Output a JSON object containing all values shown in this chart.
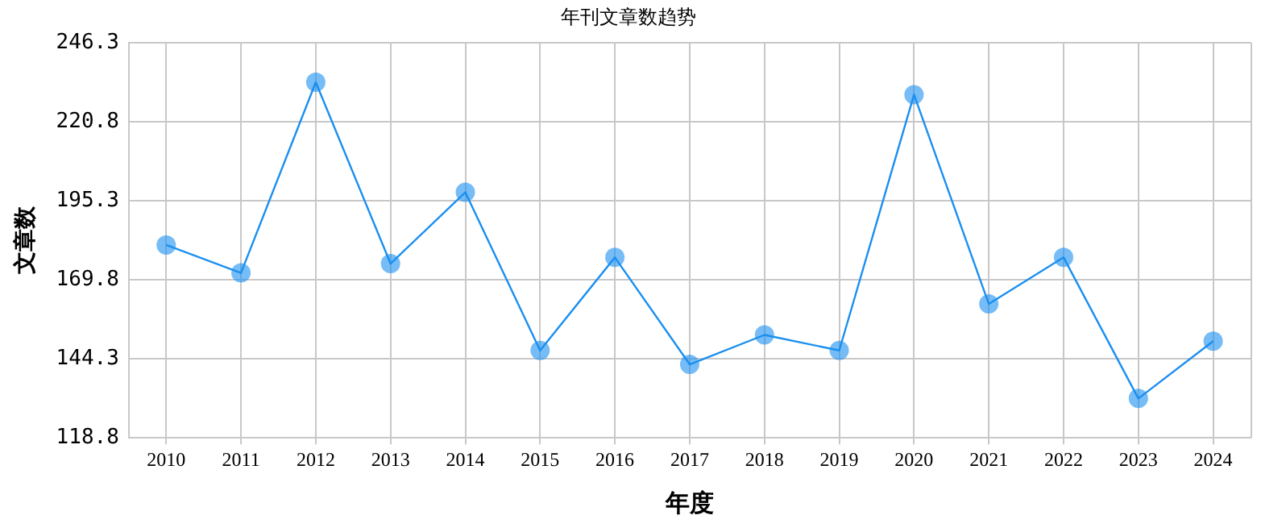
{
  "chart_data": {
    "type": "line",
    "title": "年刊文章数趋势",
    "xlabel": "年度",
    "ylabel": "文章数",
    "categories": [
      "2010",
      "2011",
      "2012",
      "2013",
      "2014",
      "2015",
      "2016",
      "2017",
      "2018",
      "2019",
      "2020",
      "2021",
      "2022",
      "2023",
      "2024"
    ],
    "series": [
      {
        "color": "#1a8ff0",
        "values": [
          181,
          172,
          233.5,
          175,
          198,
          147,
          177,
          142.5,
          152,
          147,
          229.5,
          162,
          177,
          131.5,
          150
        ]
      }
    ],
    "ylim": [
      118.8,
      246.3
    ],
    "yticks": [
      118.8,
      144.3,
      169.8,
      195.3,
      220.8,
      246.3
    ],
    "grid": true,
    "legend": false,
    "marker": "circle",
    "line_style": "solid"
  }
}
